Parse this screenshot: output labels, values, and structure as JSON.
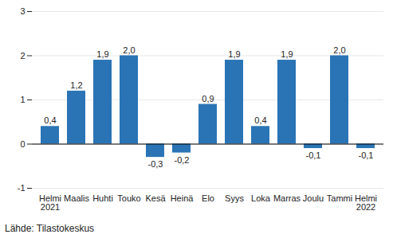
{
  "chart_data": {
    "type": "bar",
    "categories": [
      "Helmi\n2021",
      "Maalis",
      "Huhti",
      "Touko",
      "Kesä",
      "Heinä",
      "Elo",
      "Syys",
      "Loka",
      "Marras",
      "Joulu",
      "Tammi",
      "Helmi\n2022"
    ],
    "values": [
      0.4,
      1.2,
      1.9,
      2.0,
      -0.3,
      -0.2,
      0.9,
      1.9,
      0.4,
      1.9,
      -0.1,
      2.0,
      -0.1
    ],
    "value_labels": [
      "0,4",
      "1,2",
      "1,9",
      "2,0",
      "-0,3",
      "-0,2",
      "0,9",
      "1,9",
      "0,4",
      "1,9",
      "-0,1",
      "2,0",
      "-0,1"
    ],
    "data_labels": true,
    "color": "#2a74b5",
    "ylim": [
      -1,
      3
    ],
    "yticks": [
      -1,
      0,
      1,
      2,
      3
    ],
    "grid": true,
    "caption": "Lähde: Tilastokeskus"
  }
}
